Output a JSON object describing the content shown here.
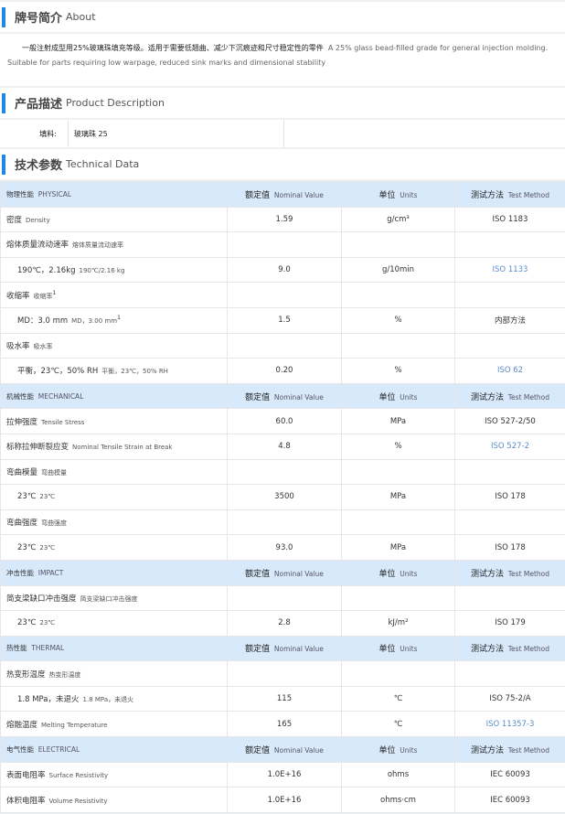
{
  "about": {
    "title_cn": "牌号简介",
    "title_en": "About",
    "text_cn": "一般注射成型用25%玻璃珠填充等级。适用于需要低翘曲、减少下沉痕迹和尺寸稳定性的零件",
    "text_en": "A 25% glass bead-filled grade for general injection molding. Suitable for parts requiring low warpage, reduced sink marks and dimensional stability"
  },
  "description": {
    "title_cn": "产品描述",
    "title_en": "Product Description",
    "label": "填料:",
    "value": "玻璃珠 25"
  },
  "technical": {
    "title_cn": "技术参数",
    "title_en": "Technical Data",
    "col_headers": {
      "value_cn": "额定值",
      "value_en": "Nominal Value",
      "unit_cn": "单位",
      "unit_en": "Units",
      "method_cn": "测试方法",
      "method_en": "Test Method"
    },
    "rows": [
      {
        "type": "group",
        "cn": "物理性能",
        "en": "PHYSICAL"
      },
      {
        "cn": "密度",
        "sub": "Density",
        "value": "1.59",
        "unit": "g/cm³",
        "method": "ISO 1183"
      },
      {
        "cn": "熔体质量流动速率",
        "sub": "熔体质量流动速率"
      },
      {
        "indent": true,
        "cn": "190℃，2.16kg",
        "sub": "190℃/2.16 kg",
        "value": "9.0",
        "unit": "g/10min",
        "method": "ISO 1133",
        "link": true
      },
      {
        "cn": "收缩率",
        "sub": "收缩率",
        "sup": "1"
      },
      {
        "indent": true,
        "cn": "MD：3.0 mm",
        "sub": "MD，3.00 mm",
        "sup": "1",
        "value": "1.5",
        "unit": "%",
        "method": "内部方法"
      },
      {
        "cn": "吸水率",
        "sub": "吸水率"
      },
      {
        "indent": true,
        "cn": "平衡，23℃，50% RH",
        "sub": "平衡，23℃，50% RH",
        "value": "0.20",
        "unit": "%",
        "method": "ISO 62",
        "link": true
      },
      {
        "type": "group",
        "cn": "机械性能",
        "en": "MECHANICAL"
      },
      {
        "cn": "拉伸强度",
        "sub": "Tensile Stress",
        "value": "60.0",
        "unit": "MPa",
        "method": "ISO 527-2/50"
      },
      {
        "cn": "标称拉伸断裂应变",
        "sub": "Nominal Tensile Strain at Break",
        "value": "4.8",
        "unit": "%",
        "method": "ISO 527-2",
        "link": true
      },
      {
        "cn": "弯曲模量",
        "sub": "弯曲模量"
      },
      {
        "indent": true,
        "cn": "23℃",
        "sub": "23℃",
        "value": "3500",
        "unit": "MPa",
        "method": "ISO 178"
      },
      {
        "cn": "弯曲强度",
        "sub": "弯曲强度"
      },
      {
        "indent": true,
        "cn": "23℃",
        "sub": "23℃",
        "value": "93.0",
        "unit": "MPa",
        "method": "ISO 178"
      },
      {
        "type": "group",
        "cn": "冲击性能",
        "en": "IMPACT"
      },
      {
        "cn": "简支梁缺口冲击强度",
        "sub": "简支梁缺口冲击强度"
      },
      {
        "indent": true,
        "cn": "23℃",
        "sub": "23℃",
        "value": "2.8",
        "unit": "kJ/m²",
        "method": "ISO 179"
      },
      {
        "type": "group",
        "cn": "热性能",
        "en": "THERMAL"
      },
      {
        "cn": "热变形温度",
        "sub": "热变形温度"
      },
      {
        "indent": true,
        "cn": "1.8 MPa，未退火",
        "sub": "1.8 MPa，未退火",
        "value": "115",
        "unit": "℃",
        "method": "ISO 75-2/A"
      },
      {
        "cn": "熔融温度",
        "sub": "Melting Temperature",
        "value": "165",
        "unit": "℃",
        "method": "ISO 11357-3",
        "link": true
      },
      {
        "type": "group",
        "cn": "电气性能",
        "en": "ELECTRICAL"
      },
      {
        "cn": "表面电阻率",
        "sub": "Surface Resistivity",
        "value": "1.0E+16",
        "unit": "ohms",
        "method": "IEC 60093"
      },
      {
        "cn": "体积电阻率",
        "sub": "Volume Resistivity",
        "value": "1.0E+16",
        "unit": "ohms·cm",
        "method": "IEC 60093"
      }
    ]
  },
  "colors": {
    "accent": "#1e88e5",
    "group_bg": "#d7e9fb",
    "link": "#5b8cc9"
  }
}
